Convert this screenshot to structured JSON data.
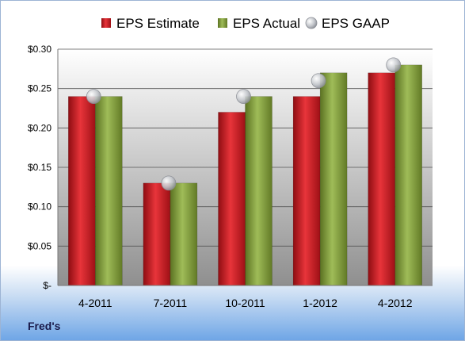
{
  "company_label": "Fred's",
  "chart_data": {
    "type": "bar",
    "categories": [
      "4-2011",
      "7-2011",
      "10-2011",
      "1-2012",
      "4-2012"
    ],
    "series": [
      {
        "name": "EPS Estimate",
        "kind": "bar",
        "color": "#c8161d",
        "values": [
          0.24,
          0.13,
          0.22,
          0.24,
          0.27
        ]
      },
      {
        "name": "EPS Actual",
        "kind": "bar",
        "color": "#7f9a3a",
        "values": [
          0.24,
          0.13,
          0.24,
          0.27,
          0.28
        ]
      },
      {
        "name": "EPS GAAP",
        "kind": "marker",
        "color": "#b8bcc4",
        "values": [
          0.24,
          0.13,
          0.24,
          0.26,
          0.28
        ]
      }
    ],
    "ylim": [
      0,
      0.3
    ],
    "y_ticks": [
      0,
      0.05,
      0.1,
      0.15,
      0.2,
      0.25,
      0.3
    ],
    "y_tick_labels": [
      "$-",
      "$0.05",
      "$0.10",
      "$0.15",
      "$0.20",
      "$0.25",
      "$0.30"
    ],
    "grid": true,
    "legend_position": "top",
    "plot_background": "#b0b0b0"
  }
}
